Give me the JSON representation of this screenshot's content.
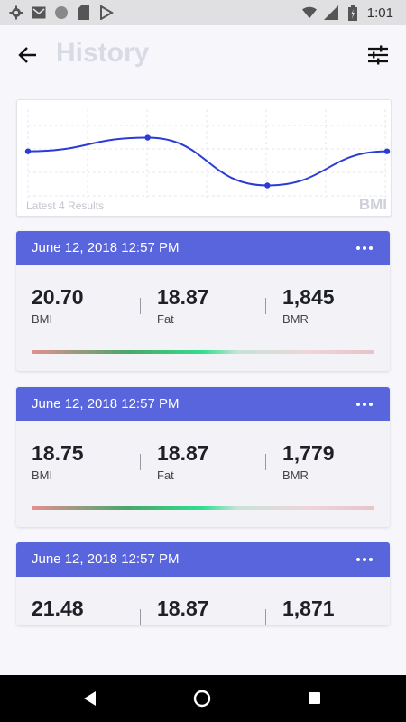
{
  "status_bar": {
    "time": "1:01",
    "left_icons": [
      "gear-icon",
      "mail-icon",
      "circle-icon",
      "sd-card-icon",
      "play-store-icon"
    ],
    "right_icons": [
      "wifi-icon",
      "signal-icon",
      "battery-icon"
    ]
  },
  "header": {
    "title": "History",
    "back_icon": "arrow-left-icon",
    "filter_icon": "tune-icon"
  },
  "chart": {
    "caption": "Latest 4 Results",
    "ylabel": "BMI"
  },
  "chart_data": {
    "type": "line",
    "x": [
      1,
      2,
      3,
      4
    ],
    "values": [
      20.7,
      21.48,
      18.75,
      20.7
    ],
    "grid": true,
    "legend": "none",
    "ylabel": "BMI",
    "title": ""
  },
  "results": [
    {
      "date": "June 12, 2018 12:57 PM",
      "metrics": [
        {
          "value": "20.70",
          "label": "BMI"
        },
        {
          "value": "18.87",
          "label": "Fat"
        },
        {
          "value": "1,845",
          "label": "BMR"
        }
      ]
    },
    {
      "date": "June 12, 2018 12:57 PM",
      "metrics": [
        {
          "value": "18.75",
          "label": "BMI"
        },
        {
          "value": "18.87",
          "label": "Fat"
        },
        {
          "value": "1,779",
          "label": "BMR"
        }
      ]
    },
    {
      "date": "June 12, 2018 12:57 PM",
      "metrics": [
        {
          "value": "21.48",
          "label": ""
        },
        {
          "value": "18.87",
          "label": ""
        },
        {
          "value": "1,871",
          "label": ""
        }
      ]
    }
  ],
  "colors": {
    "accent": "#5865dc",
    "line": "#2a3bd6",
    "background": "#f7f7fb"
  }
}
